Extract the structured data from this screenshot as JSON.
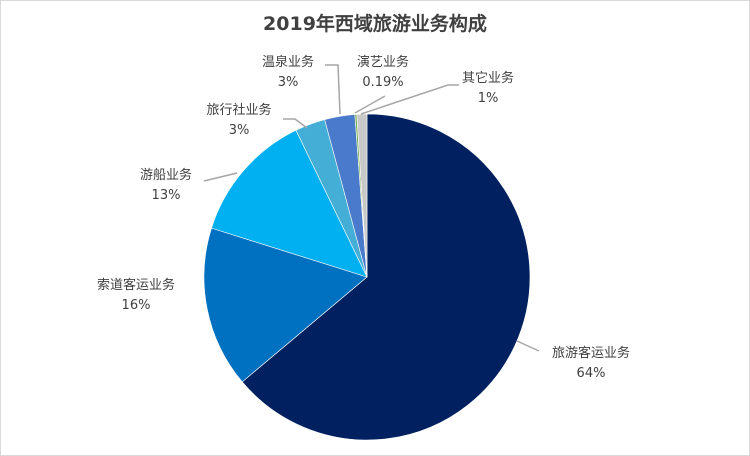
{
  "chart_data": {
    "type": "pie",
    "title": "2019年西域旅游业务构成",
    "start_angle": "12 o'clock, clockwise",
    "slices": [
      {
        "name": "旅游客运业务",
        "value": 64,
        "label": "64%",
        "color": "#002060"
      },
      {
        "name": "索道客运业务",
        "value": 16,
        "label": "16%",
        "color": "#0070c0"
      },
      {
        "name": "游船业务",
        "value": 13,
        "label": "13%",
        "color": "#00b0f0"
      },
      {
        "name": "旅行社业务",
        "value": 3,
        "label": "3%",
        "color": "#45aed6"
      },
      {
        "name": "温泉业务",
        "value": 3,
        "label": "3%",
        "color": "#4a7acb"
      },
      {
        "name": "演艺业务",
        "value": 0.19,
        "label": "0.19%",
        "color": "#70ad47"
      },
      {
        "name": "其它业务",
        "value": 1,
        "label": "1%",
        "color": "#c8c8c8"
      }
    ]
  }
}
